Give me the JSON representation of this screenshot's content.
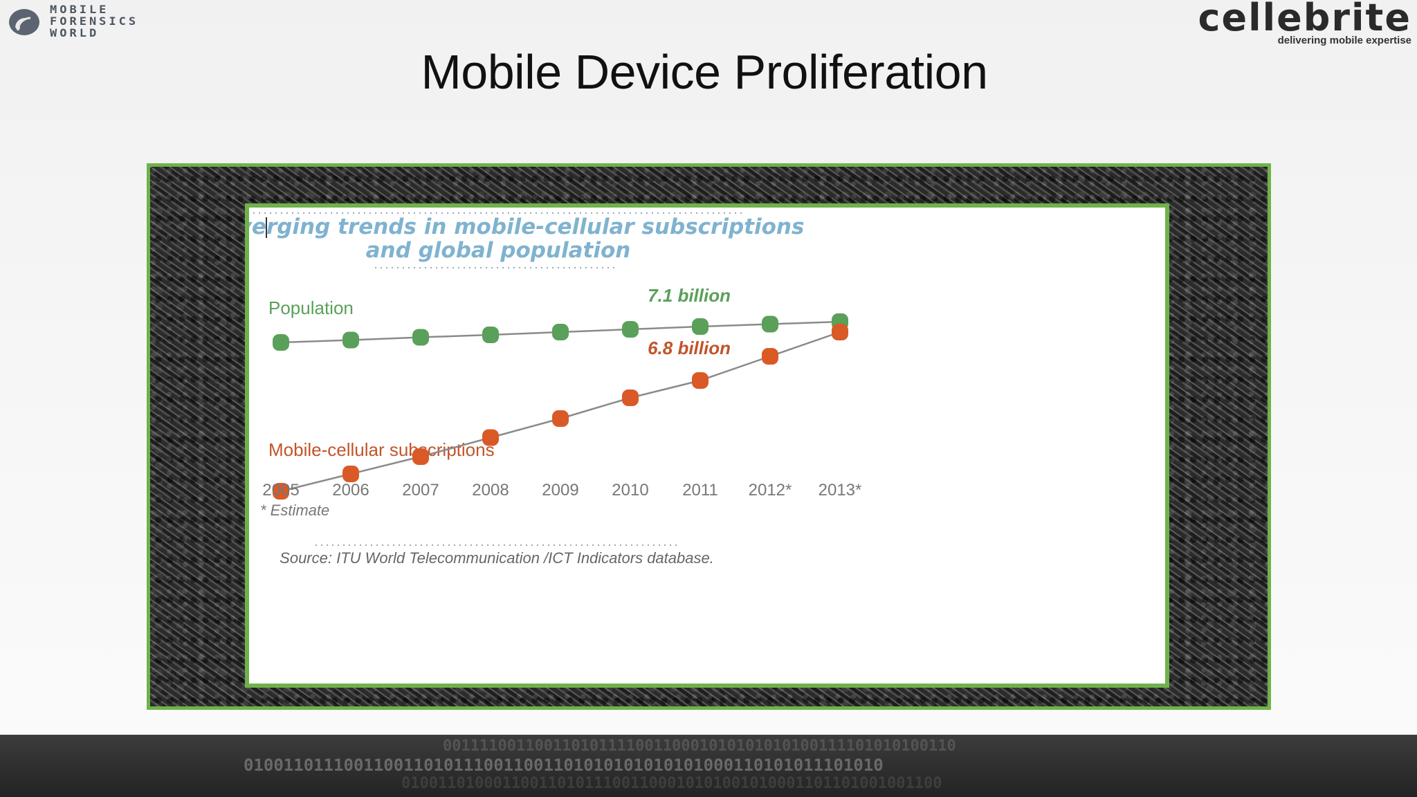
{
  "header": {
    "left_logo_lines": [
      "MOBILE",
      "FORENSICS",
      "WORLD"
    ],
    "right_logo_word": "cellebrite",
    "right_logo_tagline": "delivering mobile expertise"
  },
  "page_title": "Mobile Device Proliferation",
  "chart_data": {
    "type": "line",
    "title": "Converging trends in mobile-cellular subscriptions and global population",
    "title_lines": [
      "Converging trends in mobile-cellular subscriptions",
      "and global population"
    ],
    "categories": [
      "2005",
      "2006",
      "2007",
      "2008",
      "2009",
      "2010",
      "2011",
      "2012*",
      "2013*"
    ],
    "series": [
      {
        "name": "Population",
        "color": "#5aa05a",
        "values": [
          6.5,
          6.57,
          6.65,
          6.72,
          6.8,
          6.88,
          6.96,
          7.03,
          7.1
        ]
      },
      {
        "name": "Mobile-cellular subscriptions",
        "color": "#d95a26",
        "values": [
          2.2,
          2.7,
          3.2,
          3.75,
          4.3,
          4.9,
          5.4,
          6.1,
          6.8
        ]
      }
    ],
    "annotations": {
      "population_end": "7.1 billion",
      "subscriptions_end": "6.8 billion"
    },
    "note": "* Estimate",
    "source": "Source: ITU World Telecommunication /ICT Indicators database.",
    "ylim": [
      2,
      7.2
    ],
    "grid": false,
    "xlabel": "",
    "ylabel": ""
  },
  "footer": {
    "binary_lines": [
      "00111100110011010111100110001010101010100111101010100110",
      "0100110111001100110101110011001101010101010101000110101011101010",
      "01001101000110011010111001100010101001010001101101001001100"
    ]
  }
}
